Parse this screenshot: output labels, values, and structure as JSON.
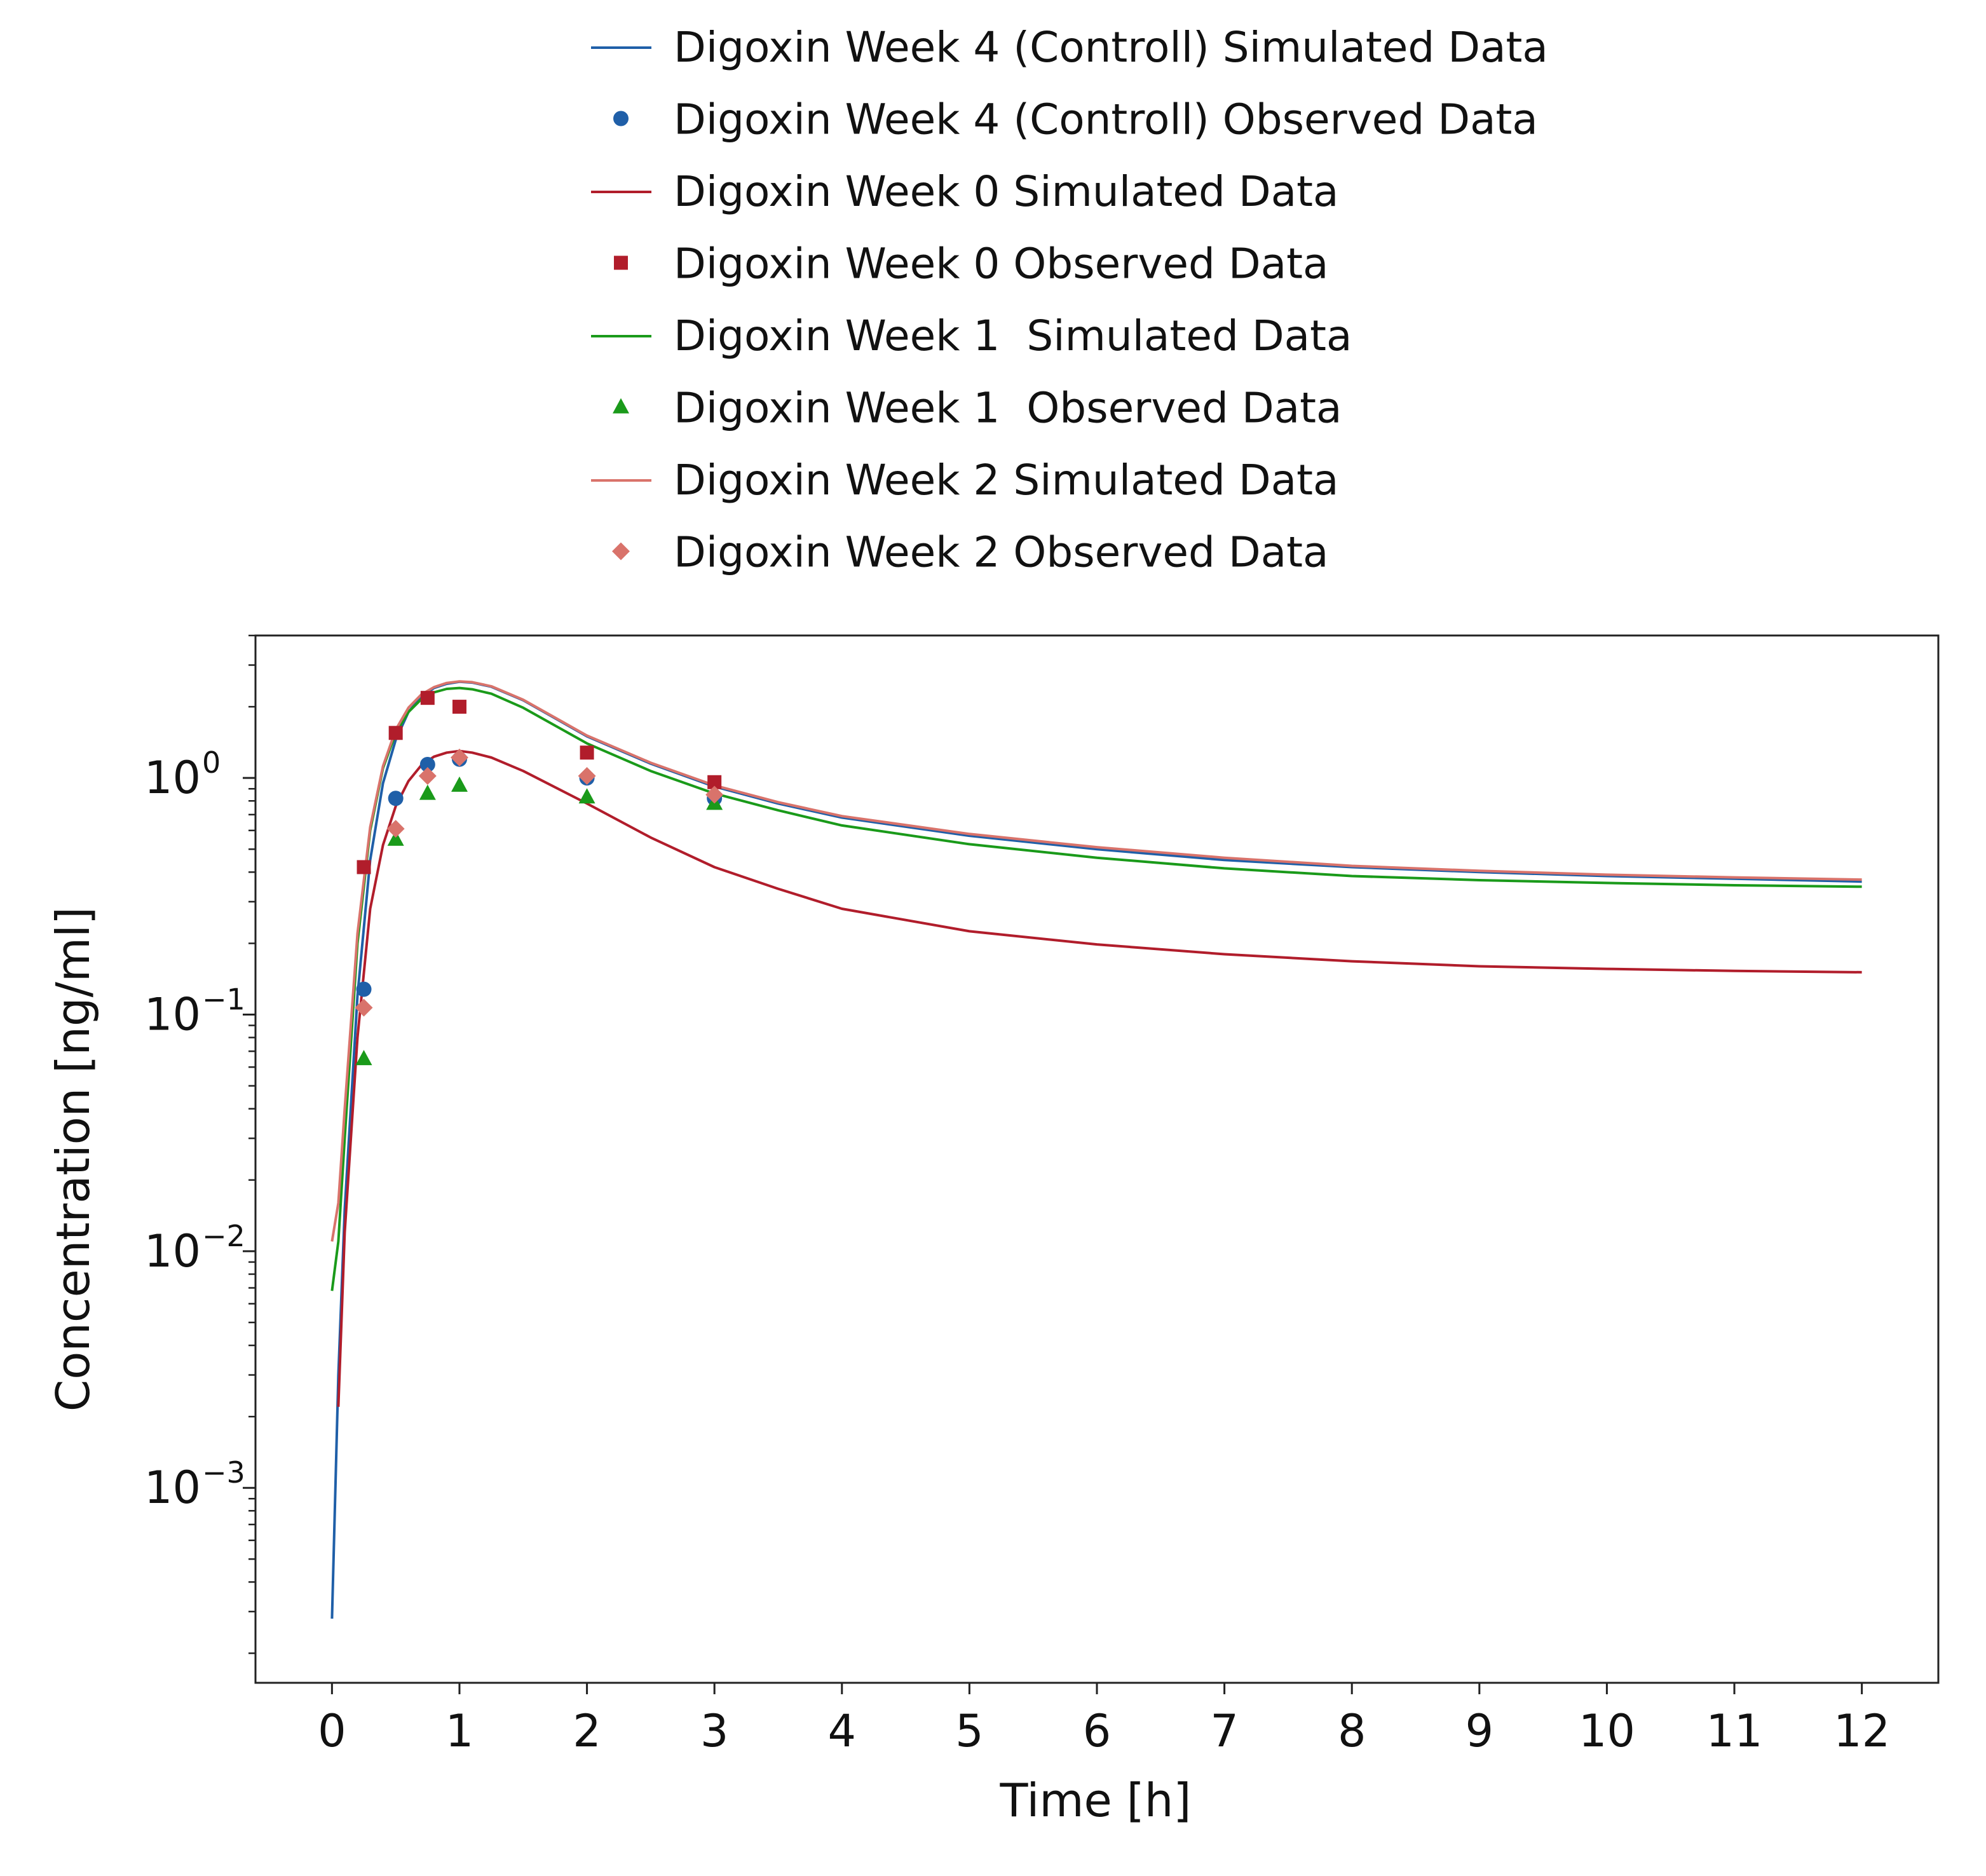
{
  "chart_data": {
    "type": "line",
    "xlabel": "Time [h]",
    "ylabel": "Concentration [ng/ml]",
    "xlim": [
      -0.6,
      12.6
    ],
    "ylim": [
      0.00015,
      4.0
    ],
    "y_scale": "log",
    "x_ticks": [
      "0",
      "1",
      "2",
      "3",
      "4",
      "5",
      "6",
      "7",
      "8",
      "9",
      "10",
      "11",
      "12"
    ],
    "y_ticks": [
      {
        "value": 1,
        "base": "10",
        "exp": "0"
      },
      {
        "value": 0.1,
        "base": "10",
        "exp": "−1"
      },
      {
        "value": 0.01,
        "base": "10",
        "exp": "−2"
      },
      {
        "value": 0.001,
        "base": "10",
        "exp": "−3"
      }
    ],
    "grid": false,
    "legend_position": "top-center",
    "series": [
      {
        "name": "Digoxin Week 4 (Controll) Simulated Data",
        "kind": "line",
        "color": "#1f5fa8",
        "x": [
          0,
          0.05,
          0.1,
          0.2,
          0.3,
          0.4,
          0.5,
          0.6,
          0.7,
          0.8,
          0.9,
          1.0,
          1.1,
          1.25,
          1.5,
          2.0,
          2.5,
          3.0,
          3.5,
          4.0,
          5.0,
          6.0,
          7.0,
          8.0,
          9.0,
          10.0,
          11.0,
          12.0
        ],
        "y": [
          0.00028,
          0.003,
          0.015,
          0.12,
          0.45,
          0.95,
          1.45,
          1.9,
          2.2,
          2.4,
          2.5,
          2.55,
          2.53,
          2.43,
          2.13,
          1.5,
          1.15,
          0.92,
          0.78,
          0.68,
          0.57,
          0.5,
          0.45,
          0.42,
          0.4,
          0.385,
          0.375,
          0.365
        ]
      },
      {
        "name": "Digoxin Week 4 (Controll) Observed Data",
        "kind": "marker",
        "marker": "circle",
        "color": "#1f5fa8",
        "x": [
          0.25,
          0.5,
          0.75,
          1.0,
          2.0,
          3.0
        ],
        "y": [
          0.128,
          0.82,
          1.14,
          1.2,
          1.0,
          0.82
        ]
      },
      {
        "name": "Digoxin Week 0 Simulated Data",
        "kind": "line",
        "color": "#b11d2b",
        "x": [
          0.05,
          0.1,
          0.2,
          0.3,
          0.4,
          0.5,
          0.6,
          0.7,
          0.8,
          0.9,
          1.0,
          1.1,
          1.25,
          1.5,
          2.0,
          2.5,
          3.0,
          3.5,
          4.0,
          5.0,
          6.0,
          7.0,
          8.0,
          9.0,
          10.0,
          11.0,
          12.0
        ],
        "y": [
          0.0022,
          0.012,
          0.08,
          0.28,
          0.52,
          0.76,
          0.97,
          1.13,
          1.23,
          1.28,
          1.3,
          1.28,
          1.22,
          1.07,
          0.78,
          0.56,
          0.42,
          0.34,
          0.28,
          0.225,
          0.198,
          0.18,
          0.168,
          0.16,
          0.156,
          0.153,
          0.151
        ]
      },
      {
        "name": "Digoxin Week 0 Observed Data",
        "kind": "marker",
        "marker": "square",
        "color": "#b11d2b",
        "x": [
          0.25,
          0.5,
          0.75,
          1.0,
          2.0,
          3.0
        ],
        "y": [
          0.42,
          1.55,
          2.18,
          2.0,
          1.28,
          0.96
        ]
      },
      {
        "name": "Digoxin Week 1  Simulated Data",
        "kind": "line",
        "color": "#1a9a1a",
        "x": [
          0,
          0.05,
          0.1,
          0.2,
          0.3,
          0.4,
          0.5,
          0.6,
          0.7,
          0.8,
          0.9,
          1.0,
          1.1,
          1.25,
          1.5,
          2.0,
          2.5,
          3.0,
          3.5,
          4.0,
          5.0,
          6.0,
          7.0,
          8.0,
          9.0,
          10.0,
          11.0,
          12.0
        ],
        "y": [
          0.0068,
          0.011,
          0.03,
          0.2,
          0.6,
          1.1,
          1.55,
          1.9,
          2.15,
          2.3,
          2.38,
          2.4,
          2.37,
          2.27,
          1.98,
          1.4,
          1.07,
          0.86,
          0.73,
          0.63,
          0.525,
          0.46,
          0.415,
          0.385,
          0.37,
          0.36,
          0.352,
          0.347
        ]
      },
      {
        "name": "Digoxin Week 1  Observed Data",
        "kind": "marker",
        "marker": "triangle",
        "color": "#1a9a1a",
        "x": [
          0.25,
          0.5,
          0.75,
          1.0,
          2.0,
          3.0
        ],
        "y": [
          0.065,
          0.55,
          0.86,
          0.93,
          0.83,
          0.78
        ]
      },
      {
        "name": "Digoxin Week 2 Simulated Data",
        "kind": "line",
        "color": "#d9736b",
        "x": [
          0,
          0.05,
          0.1,
          0.2,
          0.3,
          0.4,
          0.5,
          0.6,
          0.7,
          0.8,
          0.9,
          1.0,
          1.1,
          1.25,
          1.5,
          2.0,
          2.5,
          3.0,
          3.5,
          4.0,
          5.0,
          6.0,
          7.0,
          8.0,
          9.0,
          10.0,
          11.0,
          12.0
        ],
        "y": [
          0.011,
          0.016,
          0.04,
          0.22,
          0.62,
          1.12,
          1.6,
          1.98,
          2.25,
          2.42,
          2.52,
          2.56,
          2.54,
          2.44,
          2.14,
          1.51,
          1.16,
          0.93,
          0.79,
          0.69,
          0.58,
          0.51,
          0.46,
          0.425,
          0.405,
          0.39,
          0.38,
          0.372
        ]
      },
      {
        "name": "Digoxin Week 2 Observed Data",
        "kind": "marker",
        "marker": "diamond",
        "color": "#d9736b",
        "x": [
          0.25,
          0.5,
          0.75,
          1.0,
          2.0,
          3.0
        ],
        "y": [
          0.107,
          0.61,
          1.02,
          1.22,
          1.02,
          0.85
        ]
      }
    ]
  }
}
